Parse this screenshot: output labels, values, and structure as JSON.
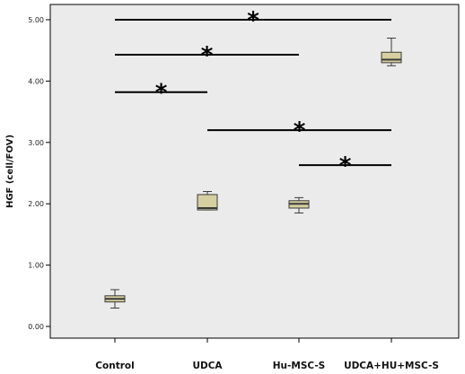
{
  "chart_data": {
    "type": "box",
    "ylabel": "HGF (cell/FOV)",
    "xlabel": "",
    "ylim": [
      -0.1,
      5.17
    ],
    "yticks": [
      0,
      1,
      2,
      3,
      4,
      5
    ],
    "ytick_labels": [
      "0.00",
      "1.00",
      "2.00",
      "3.00",
      "4.00",
      "5.00"
    ],
    "grid": false,
    "categories": [
      "Control",
      "UDCA",
      "Hu-MSC-S",
      "UDCA+HU+MSC-S"
    ],
    "boxes": [
      {
        "min": 0.3,
        "q1": 0.4,
        "median": 0.45,
        "q3": 0.5,
        "max": 0.6
      },
      {
        "min": 1.9,
        "q1": 1.9,
        "median": 1.93,
        "q3": 2.15,
        "max": 2.2
      },
      {
        "min": 1.85,
        "q1": 1.93,
        "median": 2.0,
        "q3": 2.05,
        "max": 2.1
      },
      {
        "min": 4.25,
        "q1": 4.3,
        "median": 4.35,
        "q3": 4.47,
        "max": 4.7
      }
    ],
    "significance": [
      {
        "from": "Control",
        "to": "UDCA+HU+MSC-S",
        "y": 5.0,
        "label": "*"
      },
      {
        "from": "Control",
        "to": "Hu-MSC-S",
        "y": 4.43,
        "label": "*"
      },
      {
        "from": "Control",
        "to": "UDCA",
        "y": 3.82,
        "label": "*"
      },
      {
        "from": "UDCA",
        "to": "UDCA+HU+MSC-S",
        "y": 3.2,
        "label": "*"
      },
      {
        "from": "Hu-MSC-S",
        "to": "UDCA+HU+MSC-S",
        "y": 2.63,
        "label": "*"
      }
    ],
    "colors": {
      "plot_background": "#ebebeb",
      "box_fill": "#d6cf9f",
      "box_stroke": "#3a3a3a",
      "line": "#000000"
    }
  }
}
